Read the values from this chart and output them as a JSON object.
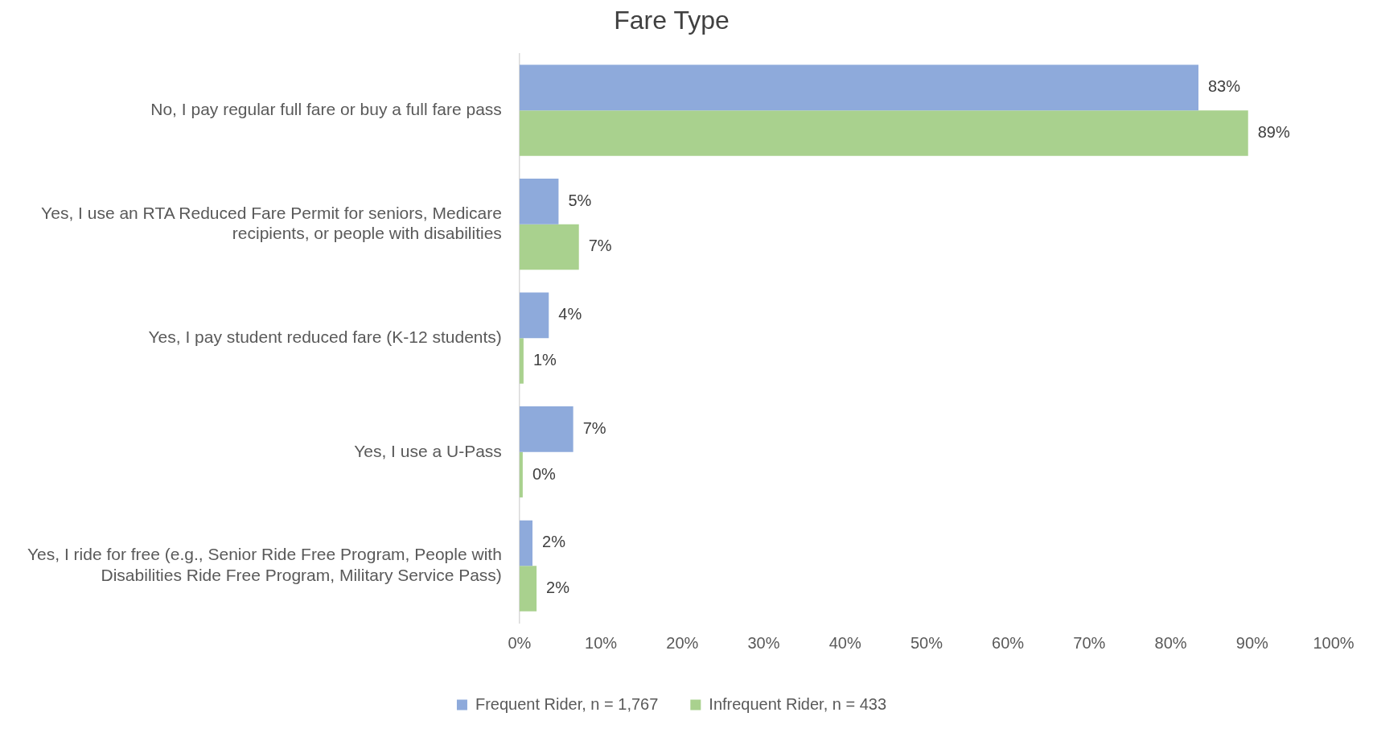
{
  "chart_data": {
    "type": "bar",
    "orientation": "horizontal",
    "title": "Fare Type",
    "categories": [
      "No, I pay regular full fare or buy a full fare pass",
      "Yes, I use an RTA Reduced Fare Permit for seniors, Medicare recipients, or people with disabilities",
      "Yes, I pay student reduced fare (K-12 students)",
      "Yes, I use a U-Pass",
      "Yes, I ride for free (e.g., Senior Ride Free Program, People with Disabilities Ride Free Program, Military Service Pass)"
    ],
    "series": [
      {
        "name": "Frequent Rider, n = 1,767",
        "color": "#8eaadb",
        "values": [
          83.4,
          4.8,
          3.6,
          6.6,
          1.6
        ],
        "value_labels": [
          "83%",
          "5%",
          "4%",
          "7%",
          "2%"
        ]
      },
      {
        "name": "Infrequent Rider, n = 433",
        "color": "#a9d18e",
        "values": [
          89.5,
          7.3,
          0.5,
          0.4,
          2.1
        ],
        "value_labels": [
          "89%",
          "7%",
          "1%",
          "0%",
          "2%"
        ]
      }
    ],
    "xlim": [
      0,
      100
    ],
    "xticks": [
      {
        "value": 0,
        "label": "0%"
      },
      {
        "value": 10,
        "label": "10%"
      },
      {
        "value": 20,
        "label": "20%"
      },
      {
        "value": 30,
        "label": "30%"
      },
      {
        "value": 40,
        "label": "40%"
      },
      {
        "value": 50,
        "label": "50%"
      },
      {
        "value": 60,
        "label": "60%"
      },
      {
        "value": 70,
        "label": "70%"
      },
      {
        "value": 80,
        "label": "80%"
      },
      {
        "value": 90,
        "label": "90%"
      },
      {
        "value": 100,
        "label": "100%"
      }
    ],
    "grid": false,
    "legend": "bottom"
  }
}
